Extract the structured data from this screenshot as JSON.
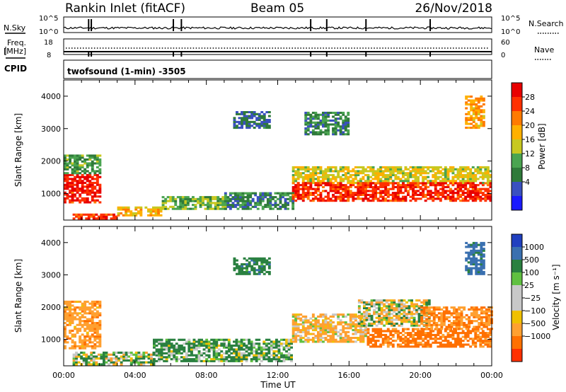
{
  "header": {
    "title": "Rankin Inlet (fitACF)",
    "beam": "Beam 05",
    "date": "26/Nov/2018"
  },
  "top_panels": {
    "nsky_label": "N.Sky",
    "nsearch_label": "N.Search",
    "freq_label_line1": "Freq.",
    "freq_label_line2": "[MHz]",
    "nave_label": "Nave",
    "cpid_label": "CPID",
    "noise_ticks_left": [
      "10^5",
      "10^0"
    ],
    "noise_ticks_right": [
      "10^5",
      "10^0"
    ],
    "freq_ticks_left": [
      "18",
      "8"
    ],
    "nave_ticks_right": [
      "60",
      "0"
    ],
    "cpid_text": "twofsound (1-min) -3505",
    "mode_change_times_h": [
      1.4,
      1.55,
      6.15,
      6.6,
      13.85,
      14.75,
      16.95,
      20.55
    ]
  },
  "axes": {
    "ylabel": "Slant Range [km]",
    "xlabel": "Time UT",
    "x_ticks": [
      "00:00",
      "04:00",
      "08:00",
      "12:00",
      "16:00",
      "20:00",
      "00:00"
    ],
    "y_ticks": [
      "1000",
      "2000",
      "3000",
      "4000"
    ]
  },
  "colorbars": {
    "power": {
      "label": "Power [dB]",
      "ticks": [
        "4",
        "8",
        "12",
        "16",
        "20",
        "24",
        "28"
      ],
      "colors": [
        "#1a1aff",
        "#3a50c0",
        "#2f7a3a",
        "#4aa450",
        "#c8c820",
        "#ffb000",
        "#ff7a00",
        "#ff3000",
        "#e80000"
      ]
    },
    "velocity": {
      "label": "Velocity [m s⁻¹]",
      "ticks": [
        "1000",
        "500",
        "100",
        "25",
        "−25",
        "−100",
        "−500",
        "−1000"
      ],
      "colors": [
        "#2040c0",
        "#3a70b0",
        "#2a8040",
        "#60c040",
        "#c8c8c8",
        "#c8c8c8",
        "#f0c000",
        "#ffa030",
        "#ff7000",
        "#ff3000"
      ]
    }
  },
  "chart_data": [
    {
      "type": "heatmap",
      "title": "Power",
      "x_range_h": [
        0,
        24
      ],
      "ylim": [
        180,
        4500
      ],
      "colorbar_range": [
        0,
        30
      ],
      "regions": [
        {
          "t": [
            0.0,
            2.0
          ],
          "r": [
            700,
            1600
          ],
          "power": 28
        },
        {
          "t": [
            0.0,
            2.0
          ],
          "r": [
            1600,
            2200
          ],
          "power": 10
        },
        {
          "t": [
            0.5,
            3.0
          ],
          "r": [
            200,
            350
          ],
          "power": 27
        },
        {
          "t": [
            3.0,
            5.5
          ],
          "r": [
            300,
            600
          ],
          "power": 18
        },
        {
          "t": [
            5.5,
            9.0
          ],
          "r": [
            500,
            900
          ],
          "power": 12
        },
        {
          "t": [
            9.0,
            12.8
          ],
          "r": [
            500,
            1000
          ],
          "power": 8
        },
        {
          "t": [
            12.8,
            24.0
          ],
          "r": [
            1300,
            1800
          ],
          "power": 16
        },
        {
          "t": [
            12.8,
            24.0
          ],
          "r": [
            750,
            1300
          ],
          "power": 27
        },
        {
          "t": [
            9.5,
            11.5
          ],
          "r": [
            3000,
            3500
          ],
          "power": 6
        },
        {
          "t": [
            13.5,
            16.0
          ],
          "r": [
            2800,
            3500
          ],
          "power": 8
        },
        {
          "t": [
            22.5,
            23.5
          ],
          "r": [
            3000,
            4000
          ],
          "power": 20
        }
      ]
    },
    {
      "type": "heatmap",
      "title": "Velocity",
      "x_range_h": [
        0,
        24
      ],
      "ylim": [
        180,
        4500
      ],
      "colorbar_range": [
        -1000,
        1000
      ],
      "regions": [
        {
          "t": [
            0.0,
            2.0
          ],
          "r": [
            700,
            2200
          ],
          "velocity": -200
        },
        {
          "t": [
            0.5,
            5.0
          ],
          "r": [
            200,
            600
          ],
          "velocity": 50
        },
        {
          "t": [
            5.0,
            12.8
          ],
          "r": [
            300,
            1000
          ],
          "velocity": 100
        },
        {
          "t": [
            12.8,
            17.0
          ],
          "r": [
            900,
            1800
          ],
          "velocity": -100
        },
        {
          "t": [
            16.5,
            20.5
          ],
          "r": [
            1400,
            2200
          ],
          "velocity": 0
        },
        {
          "t": [
            17.0,
            24.0
          ],
          "r": [
            750,
            1300
          ],
          "velocity": -400
        },
        {
          "t": [
            20.0,
            24.0
          ],
          "r": [
            1300,
            2000
          ],
          "velocity": -300
        },
        {
          "t": [
            9.5,
            11.5
          ],
          "r": [
            3000,
            3500
          ],
          "velocity": 200
        },
        {
          "t": [
            22.5,
            23.5
          ],
          "r": [
            3000,
            4000
          ],
          "velocity": 400
        }
      ]
    }
  ]
}
